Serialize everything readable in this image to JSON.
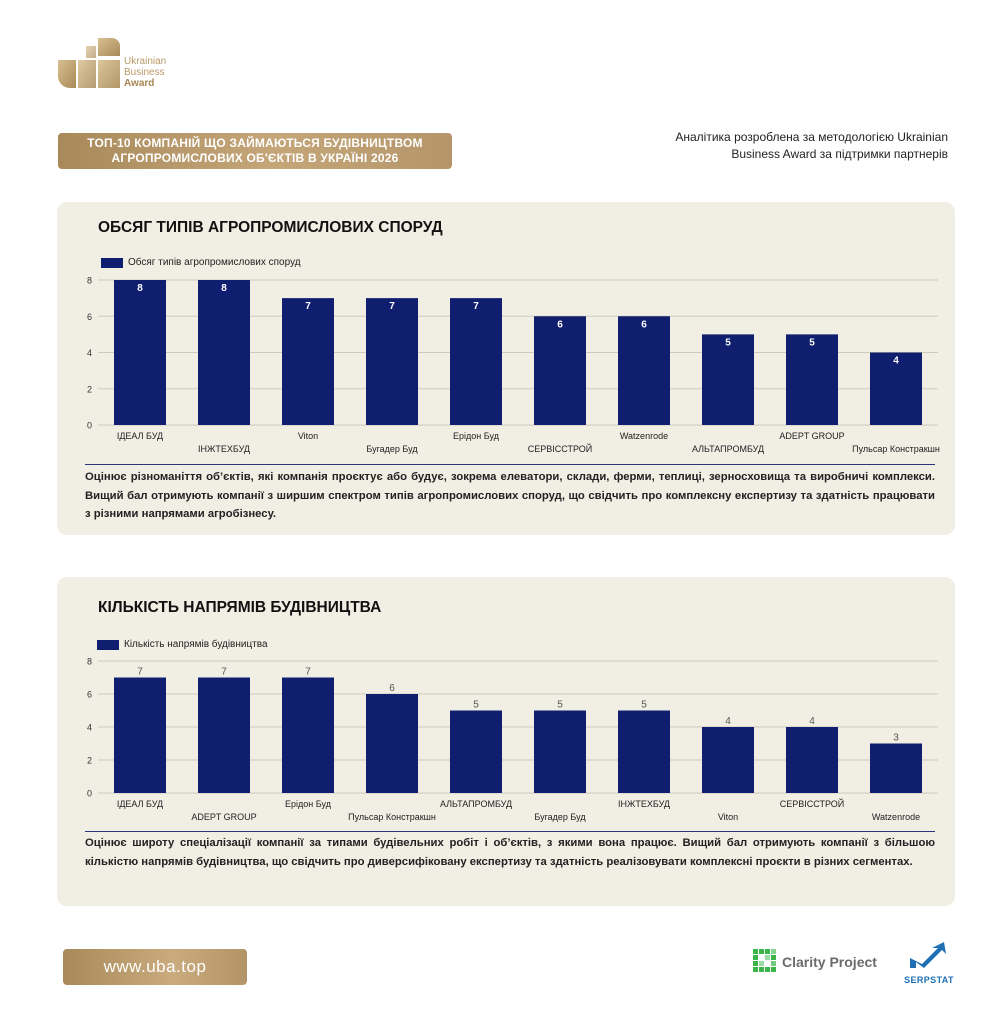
{
  "logo": {
    "line1": "Ukrainian",
    "line2": "Business",
    "line3": "Award"
  },
  "header": {
    "title_line1": "ТОП-10 КОМПАНІЙ ЩО ЗАЙМАЮТЬСЯ БУДІВНИЦТВОМ",
    "title_line2": "АГРОПРОМИСЛОВИХ ОБ'ЄКТІВ В УКРАЇНІ 2026",
    "methodology_line1": "Аналітика розроблена за методологією Ukrainian",
    "methodology_line2": "Business Award за підтримки партнерів"
  },
  "chart_data": [
    {
      "type": "bar",
      "title": "ОБСЯГ ТИПІВ АГРОПРОМИСЛОВИХ СПОРУД",
      "legend": "Обсяг типів агропромислових споруд",
      "categories": [
        "ІДЕАЛ БУД",
        "ІНЖТЕХБУД",
        "Viton",
        "Бугадер Буд",
        "Ерідон Буд",
        "СЕРВІССТРОЙ",
        "Watzenrode",
        "АЛЬТАПРОМБУД",
        "ADEPT GROUP",
        "Пульсар Констракшн"
      ],
      "values": [
        8,
        8,
        7,
        7,
        7,
        6,
        6,
        5,
        5,
        4
      ],
      "yticks": [
        0,
        2,
        4,
        6,
        8
      ],
      "ylim": [
        0,
        8
      ],
      "grid": true,
      "label_position": "inside-top",
      "legend_position": "top-left",
      "colors": {
        "bar": "#0f1e6e",
        "label": "#ffffff",
        "grid": "#cfcabb"
      }
    },
    {
      "type": "bar",
      "title": "КІЛЬКІСТЬ НАПРЯМІВ БУДІВНИЦТВА",
      "legend": "Кількість напрямів будівництва",
      "categories": [
        "ІДЕАЛ БУД",
        "ADEPT GROUP",
        "Ерідон Буд",
        "Пульсар Констракшн",
        "АЛЬТАПРОМБУД",
        "Бугадер Буд",
        "ІНЖТЕХБУД",
        "Viton",
        "СЕРВІССТРОЙ",
        "Watzenrode"
      ],
      "values": [
        7,
        7,
        7,
        6,
        5,
        5,
        5,
        4,
        4,
        3
      ],
      "yticks": [
        0,
        2,
        4,
        6,
        8
      ],
      "ylim": [
        0,
        8
      ],
      "grid": true,
      "label_position": "above",
      "legend_position": "top-left",
      "colors": {
        "bar": "#0f1e6e",
        "label": "#555555",
        "grid": "#cfcabb"
      }
    }
  ],
  "descriptions": {
    "chart1": "Оцінює різноманіття об’єктів, які компанія проєктує або будує, зокрема елеватори, склади, ферми, теплиці, зерносховища та виробничі комплекси. Вищий бал отримують компанії з ширшим спектром типів агропромислових споруд, що свідчить про комплексну експертизу та здатність працювати з різними напрямами агробізнесу.",
    "chart2": "Оцінює широту спеціалізації компанії за типами будівельних робіт і об’єктів, з якими вона працює. Вищий бал отримують компанії з більшою кількістю напрямів будівництва, що свідчить про диверсифіковану експертизу та здатність реалізовувати комплексні проєкти в різних сегментах."
  },
  "footer": {
    "url": "www.uba.top",
    "partner1": "Clarity Project",
    "partner2": "SERPSTAT"
  }
}
